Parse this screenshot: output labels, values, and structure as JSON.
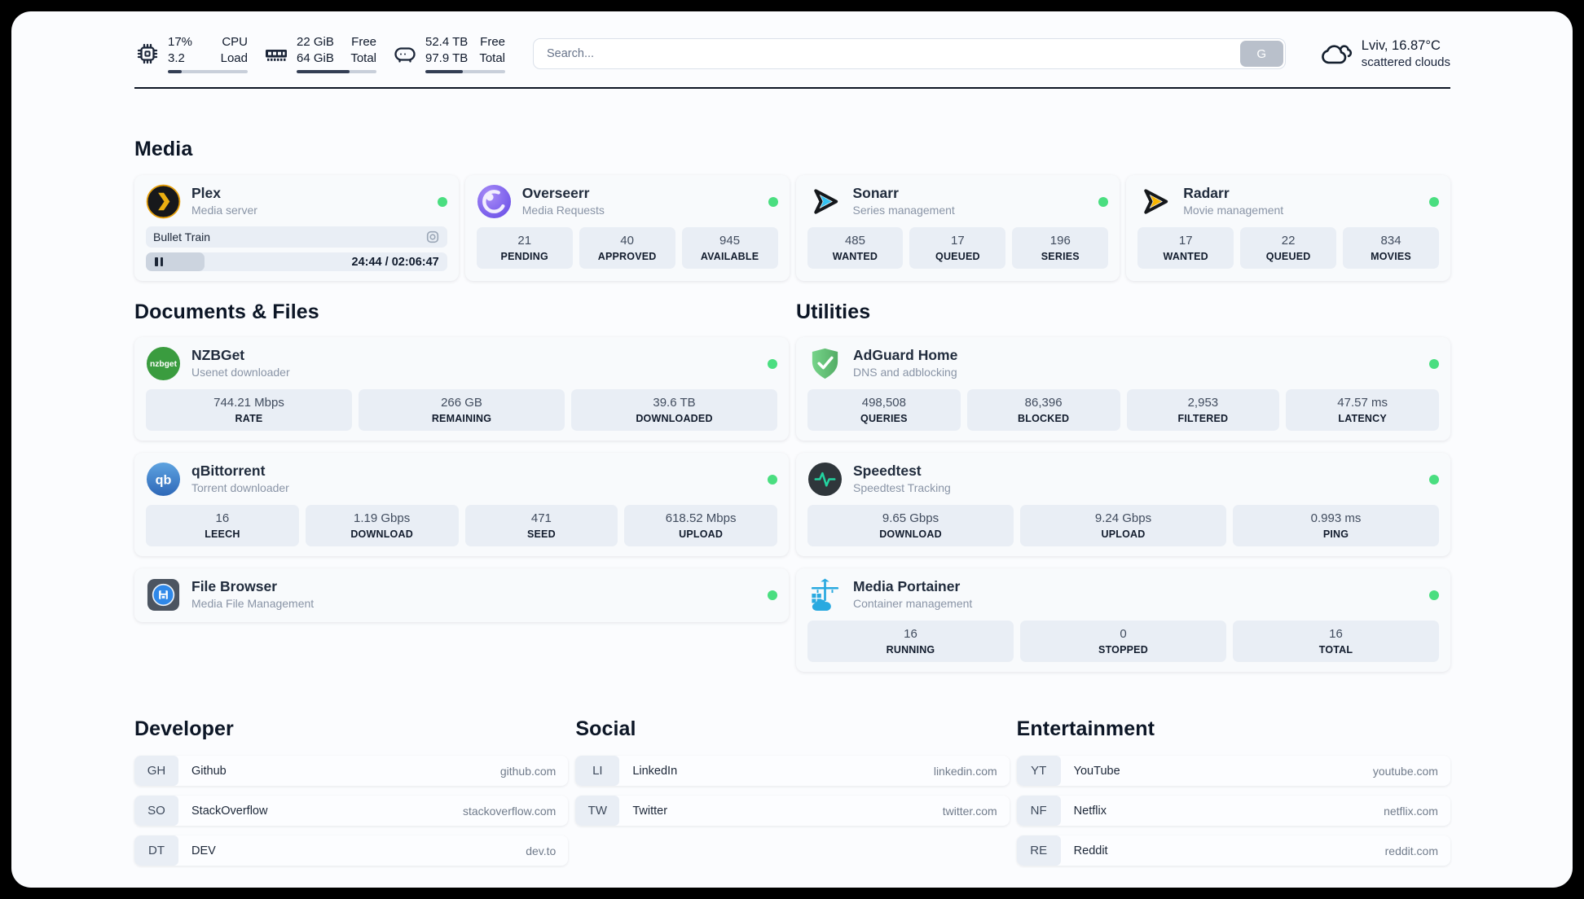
{
  "colors": {
    "status_online": "#4ade80",
    "plex_gold": "#e7a00b",
    "sonarr_cyan": "#33c1f0",
    "radarr_yellow": "#f7b500",
    "nzbget_green": "#3a9c3f",
    "qbittorrent_blue": "#2e68b8",
    "adguard_green": "#5cb56d",
    "speedtest_green": "#23d3a0",
    "portainer_blue": "#29a9e0"
  },
  "header": {
    "cpu": {
      "value1": "17%",
      "label1": "CPU",
      "value2": "3.2",
      "label2": "Load",
      "bar_percent": 17
    },
    "memory": {
      "value1": "22 GiB",
      "label1": "Free",
      "value2": "64 GiB",
      "label2": "Total",
      "bar_percent": 66
    },
    "disk": {
      "value1": "52.4 TB",
      "label1": "Free",
      "value2": "97.9 TB",
      "label2": "Total",
      "bar_percent": 47
    },
    "search": {
      "placeholder": "Search...",
      "button_label": "G"
    },
    "weather": {
      "title": "Lviv, 16.87°C",
      "subtitle": "scattered clouds"
    }
  },
  "sections": {
    "media": "Media",
    "documents": "Documents & Files",
    "utilities": "Utilities",
    "developer": "Developer",
    "social": "Social",
    "entertainment": "Entertainment"
  },
  "apps": {
    "plex": {
      "name": "Plex",
      "desc": "Media server",
      "now_playing": "Bullet Train",
      "time": "24:44 / 02:06:47",
      "progress_percent": 19.5
    },
    "overseerr": {
      "name": "Overseerr",
      "desc": "Media Requests",
      "stats": [
        {
          "value": "21",
          "label": "PENDING"
        },
        {
          "value": "40",
          "label": "APPROVED"
        },
        {
          "value": "945",
          "label": "AVAILABLE"
        }
      ]
    },
    "sonarr": {
      "name": "Sonarr",
      "desc": "Series management",
      "stats": [
        {
          "value": "485",
          "label": "WANTED"
        },
        {
          "value": "17",
          "label": "QUEUED"
        },
        {
          "value": "196",
          "label": "SERIES"
        }
      ]
    },
    "radarr": {
      "name": "Radarr",
      "desc": "Movie management",
      "stats": [
        {
          "value": "17",
          "label": "WANTED"
        },
        {
          "value": "22",
          "label": "QUEUED"
        },
        {
          "value": "834",
          "label": "MOVIES"
        }
      ]
    },
    "nzbget": {
      "name": "NZBGet",
      "desc": "Usenet downloader",
      "stats": [
        {
          "value": "744.21 Mbps",
          "label": "RATE"
        },
        {
          "value": "266 GB",
          "label": "REMAINING"
        },
        {
          "value": "39.6 TB",
          "label": "DOWNLOADED"
        }
      ]
    },
    "qbittorrent": {
      "name": "qBittorrent",
      "desc": "Torrent downloader",
      "stats": [
        {
          "value": "16",
          "label": "LEECH"
        },
        {
          "value": "1.19 Gbps",
          "label": "DOWNLOAD"
        },
        {
          "value": "471",
          "label": "SEED"
        },
        {
          "value": "618.52 Mbps",
          "label": "UPLOAD"
        }
      ]
    },
    "filebrowser": {
      "name": "File Browser",
      "desc": "Media File Management"
    },
    "adguard": {
      "name": "AdGuard Home",
      "desc": "DNS and adblocking",
      "stats": [
        {
          "value": "498,508",
          "label": "QUERIES"
        },
        {
          "value": "86,396",
          "label": "BLOCKED"
        },
        {
          "value": "2,953",
          "label": "FILTERED"
        },
        {
          "value": "47.57 ms",
          "label": "LATENCY"
        }
      ]
    },
    "speedtest": {
      "name": "Speedtest",
      "desc": "Speedtest Tracking",
      "stats": [
        {
          "value": "9.65 Gbps",
          "label": "DOWNLOAD"
        },
        {
          "value": "9.24 Gbps",
          "label": "UPLOAD"
        },
        {
          "value": "0.993 ms",
          "label": "PING"
        }
      ]
    },
    "portainer": {
      "name": "Media Portainer",
      "desc": "Container management",
      "stats": [
        {
          "value": "16",
          "label": "RUNNING"
        },
        {
          "value": "0",
          "label": "STOPPED"
        },
        {
          "value": "16",
          "label": "TOTAL"
        }
      ]
    }
  },
  "bookmarks": {
    "developer": [
      {
        "abbr": "GH",
        "name": "Github",
        "url": "github.com"
      },
      {
        "abbr": "SO",
        "name": "StackOverflow",
        "url": "stackoverflow.com"
      },
      {
        "abbr": "DT",
        "name": "DEV",
        "url": "dev.to"
      }
    ],
    "social": [
      {
        "abbr": "LI",
        "name": "LinkedIn",
        "url": "linkedin.com"
      },
      {
        "abbr": "TW",
        "name": "Twitter",
        "url": "twitter.com"
      }
    ],
    "entertainment": [
      {
        "abbr": "YT",
        "name": "YouTube",
        "url": "youtube.com"
      },
      {
        "abbr": "NF",
        "name": "Netflix",
        "url": "netflix.com"
      },
      {
        "abbr": "RE",
        "name": "Reddit",
        "url": "reddit.com"
      }
    ]
  }
}
